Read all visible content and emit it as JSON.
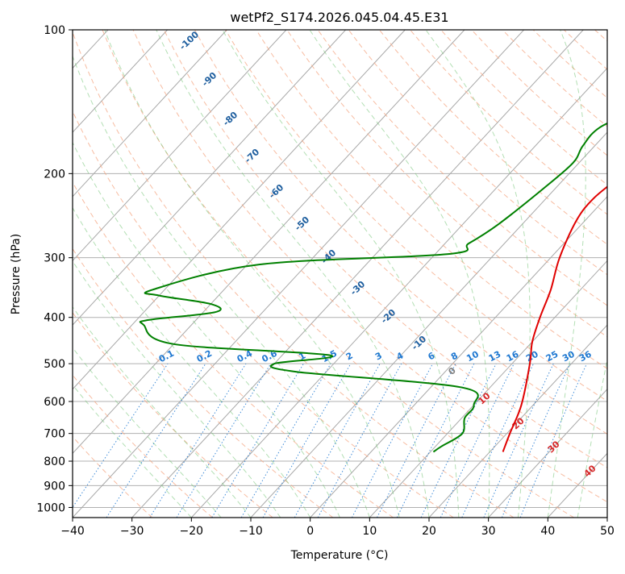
{
  "chart_data": {
    "type": "line",
    "title": "wetPf2_S174.2026.045.04.45.E31",
    "xlabel": "Temperature (°C)",
    "ylabel": "Pressure (hPa)",
    "xlim": [
      -40,
      50
    ],
    "ylim": [
      1050,
      100
    ],
    "y_scale": "log",
    "x_ticks": [
      "−40",
      "−30",
      "−20",
      "−10",
      "0",
      "10",
      "20",
      "30",
      "40",
      "50"
    ],
    "y_ticks": [
      100,
      200,
      300,
      400,
      500,
      600,
      700,
      800,
      900,
      1000
    ],
    "grid": true,
    "skew": "skew-T log-P",
    "colors": {
      "temperature": "#e00000",
      "dewpoint": "#008000",
      "dry_adiabat": "#f4a582",
      "moist_adiabat": "#74c476",
      "mixing_ratio": "#1f78d1",
      "isotherm": "#999999",
      "isotherm_label": "#1f5f9f",
      "hot_isotherm_label": "#d62728"
    },
    "series": [
      {
        "name": "Temperature",
        "points": [
          [
            22.2,
            765
          ],
          [
            20.5,
            700
          ],
          [
            18,
            610
          ],
          [
            13,
            500
          ],
          [
            10,
            450
          ],
          [
            7.5,
            400
          ],
          [
            5,
            350
          ],
          [
            1.5,
            300
          ],
          [
            -1.5,
            250
          ],
          [
            -2,
            225
          ],
          [
            -1,
            200
          ],
          [
            -1,
            165
          ],
          [
            -1,
            140
          ],
          [
            0.5,
            120
          ],
          [
            1.5,
            110
          ],
          [
            1.5,
            100
          ]
        ]
      },
      {
        "name": "Dewpoint",
        "points": [
          [
            10.5,
            765
          ],
          [
            11,
            745
          ],
          [
            12.5,
            700
          ],
          [
            10.5,
            650
          ],
          [
            10,
            610
          ],
          [
            5,
            560
          ],
          [
            -25,
            520
          ],
          [
            -30,
            500
          ],
          [
            -22,
            480
          ],
          [
            -50,
            455
          ],
          [
            -58,
            415
          ],
          [
            -58,
            405
          ],
          [
            -48,
            390
          ],
          [
            -50,
            375
          ],
          [
            -60,
            360
          ],
          [
            -62,
            350
          ],
          [
            -48,
            310
          ],
          [
            -18,
            295
          ],
          [
            -16,
            280
          ],
          [
            -14,
            255
          ],
          [
            -12,
            215
          ],
          [
            -11,
            190
          ],
          [
            -12,
            175
          ],
          [
            -12,
            160
          ],
          [
            -8,
            145
          ],
          [
            -6,
            130
          ],
          [
            -4,
            115
          ],
          [
            -3,
            100
          ]
        ]
      }
    ],
    "isotherm_labels": [
      "-100",
      "-90",
      "-80",
      "-70",
      "-60",
      "-50",
      "-40",
      "-30",
      "-20",
      "-10",
      "0",
      "10",
      "20",
      "30",
      "40"
    ],
    "mixing_ratio_labels": [
      "0.1",
      "0.2",
      "0.4",
      "0.6",
      "1",
      "1.5",
      "2",
      "3",
      "4",
      "6",
      "8",
      "10",
      "13",
      "16",
      "20",
      "25",
      "30",
      "36"
    ],
    "mixing_ratio_values": [
      0.1,
      0.2,
      0.4,
      0.6,
      1,
      1.5,
      2,
      3,
      4,
      6,
      8,
      10,
      13,
      16,
      20,
      25,
      30,
      36
    ]
  }
}
